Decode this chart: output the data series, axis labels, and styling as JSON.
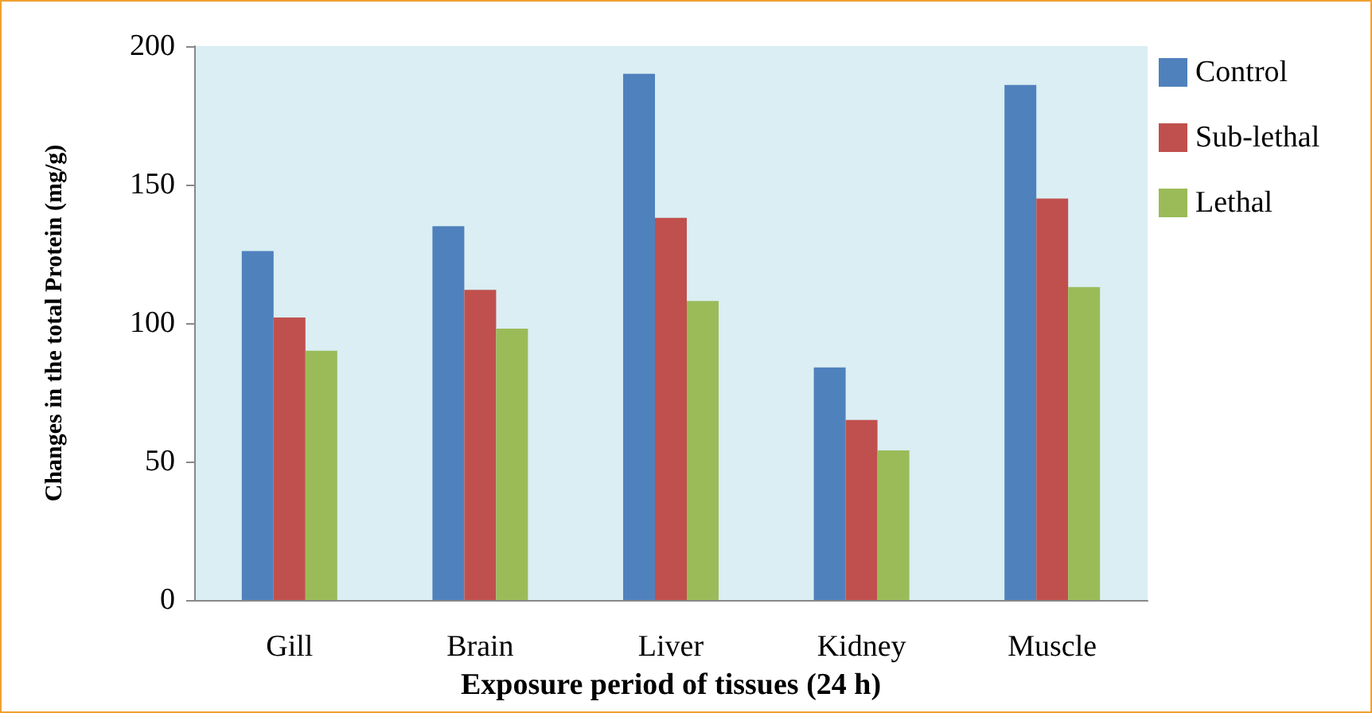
{
  "chart_data": {
    "type": "bar",
    "xlabel": "Exposure period of tissues (24 h)",
    "ylabel": "Changes in the total Protein (mg/g)",
    "categories": [
      "Gill",
      "Brain",
      "Liver",
      "Kidney",
      "Muscle"
    ],
    "series": [
      {
        "name": "Control",
        "color": "#4f81bd",
        "values": [
          126,
          135,
          190,
          84,
          186
        ]
      },
      {
        "name": "Sub-lethal",
        "color": "#c0504d",
        "values": [
          102,
          112,
          138,
          65,
          145
        ]
      },
      {
        "name": "Lethal",
        "color": "#9bbb59",
        "values": [
          90,
          98,
          108,
          54,
          113
        ]
      }
    ],
    "ylim": [
      0,
      200
    ],
    "yticks": [
      0,
      50,
      100,
      150,
      200
    ],
    "grid": false,
    "legend": "right"
  }
}
